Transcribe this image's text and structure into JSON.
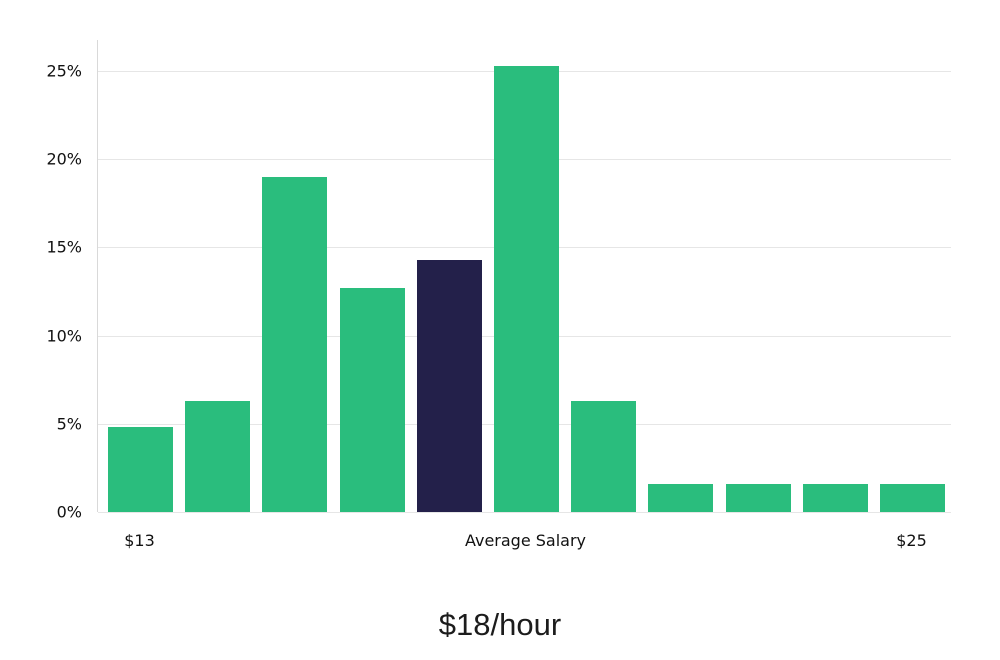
{
  "chart_data": {
    "type": "bar",
    "title": "$18/hour",
    "xlabel": "",
    "ylabel": "",
    "y_ticks": [
      0,
      5,
      10,
      15,
      20,
      25
    ],
    "y_tick_suffix": "%",
    "ylim": [
      0,
      26.8
    ],
    "values": [
      4.8,
      6.3,
      19.0,
      12.7,
      14.3,
      25.3,
      6.3,
      1.6,
      1.6,
      1.6,
      1.6
    ],
    "highlight_index": 4,
    "x_tick_labels": [
      {
        "label": "$13",
        "bar_index": 0
      },
      {
        "label": "Average Salary",
        "bar_index": 5
      },
      {
        "label": "$25",
        "bar_index": 10
      }
    ],
    "grid": "horizontal",
    "legend_position": "none",
    "colors": {
      "bar": "#2abd7d",
      "highlight_bar": "#23204a",
      "gridline": "#e6e6e6",
      "axis_line": "#d9d9d9",
      "tick_text": "#111111",
      "title_text": "#1c1c1c",
      "background": "#ffffff"
    }
  }
}
